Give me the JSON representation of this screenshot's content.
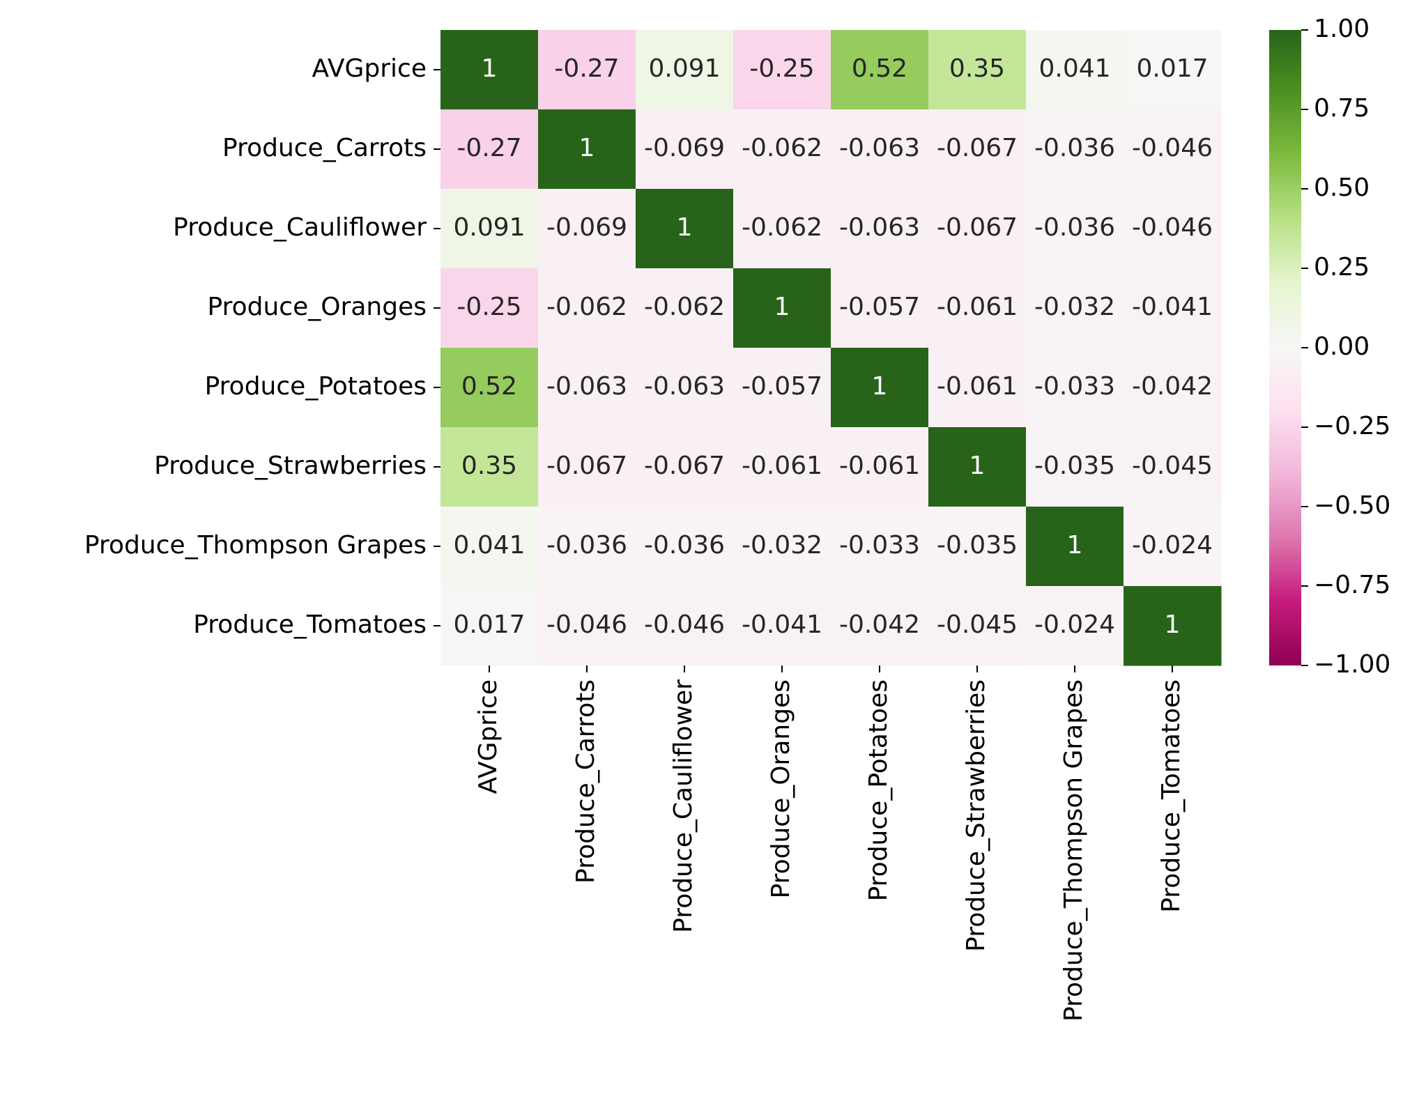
{
  "chart_data": {
    "type": "heatmap",
    "x_categories": [
      "AVGprice",
      "Produce_Carrots",
      "Produce_Cauliflower",
      "Produce_Oranges",
      "Produce_Potatoes",
      "Produce_Strawberries",
      "Produce_Thompson Grapes",
      "Produce_Tomatoes"
    ],
    "y_categories": [
      "AVGprice",
      "Produce_Carrots",
      "Produce_Cauliflower",
      "Produce_Oranges",
      "Produce_Potatoes",
      "Produce_Strawberries",
      "Produce_Thompson Grapes",
      "Produce_Tomatoes"
    ],
    "values": [
      [
        1,
        -0.27,
        0.091,
        -0.25,
        0.52,
        0.35,
        0.041,
        0.017
      ],
      [
        -0.27,
        1,
        -0.069,
        -0.062,
        -0.063,
        -0.067,
        -0.036,
        -0.046
      ],
      [
        0.091,
        -0.069,
        1,
        -0.062,
        -0.063,
        -0.067,
        -0.036,
        -0.046
      ],
      [
        -0.25,
        -0.062,
        -0.062,
        1,
        -0.057,
        -0.061,
        -0.032,
        -0.041
      ],
      [
        0.52,
        -0.063,
        -0.063,
        -0.057,
        1,
        -0.061,
        -0.033,
        -0.042
      ],
      [
        0.35,
        -0.067,
        -0.067,
        -0.061,
        -0.061,
        1,
        -0.035,
        -0.045
      ],
      [
        0.041,
        -0.036,
        -0.036,
        -0.032,
        -0.033,
        -0.035,
        1,
        -0.024
      ],
      [
        0.017,
        -0.046,
        -0.046,
        -0.041,
        -0.042,
        -0.045,
        -0.024,
        1
      ]
    ],
    "colorscale": [
      "#8e0152",
      "#c51b7d",
      "#de77ae",
      "#f1b6da",
      "#fde0ef",
      "#f7f7f7",
      "#e6f5d0",
      "#b8e186",
      "#7fbc41",
      "#4d9221",
      "#276419"
    ],
    "zlim": [
      -1,
      1
    ],
    "zticks": [
      {
        "value": 1,
        "label": "1.00"
      },
      {
        "value": 0.75,
        "label": "0.75"
      },
      {
        "value": 0.5,
        "label": "0.50"
      },
      {
        "value": 0.25,
        "label": "0.25"
      },
      {
        "value": 0,
        "label": "0.00"
      },
      {
        "value": -0.25,
        "label": "−0.25"
      },
      {
        "value": -0.5,
        "label": "−0.50"
      },
      {
        "value": -0.75,
        "label": "−0.75"
      },
      {
        "value": -1,
        "label": "−1.00"
      }
    ]
  }
}
